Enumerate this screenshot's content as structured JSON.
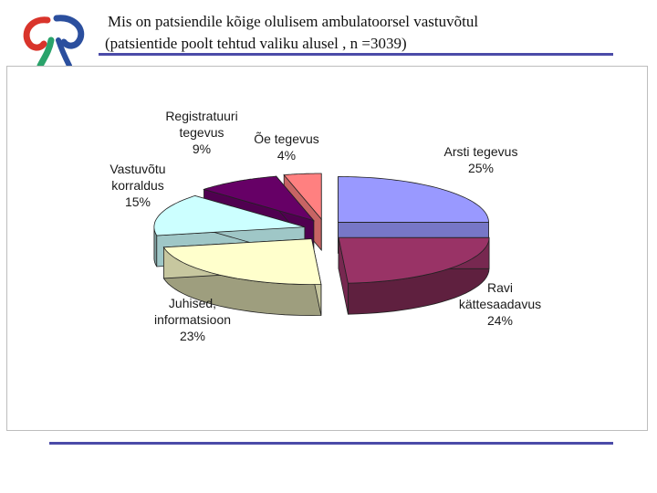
{
  "header": {
    "title": "Mis on patsiendile kõige olulisem ambulatoorsel vastuvõtul",
    "subtitle": "(patsientide poolt tehtud valiku alusel , n =3039)"
  },
  "chart_data": {
    "type": "pie",
    "title": "Mis on patsiendile kõige olulisem ambulatoorsel vastuvõtul",
    "subtitle": "(patsientide poolt tehtud valiku alusel , n =3039)",
    "slices": [
      {
        "label_lines": [
          "Arsti tegevus"
        ],
        "value": 25,
        "value_label": "25%",
        "color": "#9999ff"
      },
      {
        "label_lines": [
          "Ravi",
          "kättesaadavus"
        ],
        "value": 24,
        "value_label": "24%",
        "color": "#993366"
      },
      {
        "label_lines": [
          "Juhised,",
          "informatsioon"
        ],
        "value": 23,
        "value_label": "23%",
        "color": "#ffffcc"
      },
      {
        "label_lines": [
          "Vastuvõtu",
          "korraldus"
        ],
        "value": 15,
        "value_label": "15%",
        "color": "#ccffff"
      },
      {
        "label_lines": [
          "Registratuuri",
          "tegevus"
        ],
        "value": 9,
        "value_label": "9%",
        "color": "#660066"
      },
      {
        "label_lines": [
          "Õe tegevus"
        ],
        "value": 4,
        "value_label": "4%",
        "color": "#ff8080"
      }
    ],
    "legend": "none",
    "style": "3d-exploded"
  }
}
